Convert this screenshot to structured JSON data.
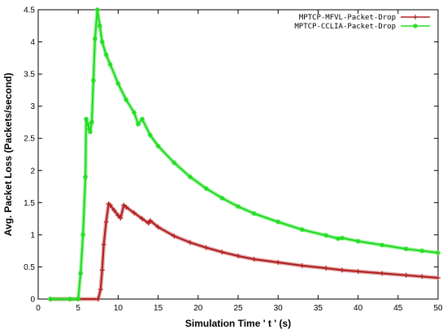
{
  "chart_data": {
    "type": "line",
    "xlabel": "Simulation Time ' t ' (s)",
    "ylabel": "Avg. Packet Loss (Packets/second)",
    "xlim": [
      0,
      50
    ],
    "ylim": [
      0,
      4.5
    ],
    "x_ticks": [
      "0",
      "5",
      "10",
      "15",
      "20",
      "25",
      "30",
      "35",
      "40",
      "45",
      "50"
    ],
    "y_ticks": [
      "0",
      "0.5",
      "1",
      "1.5",
      "2",
      "2.5",
      "3",
      "3.5",
      "4",
      "4.5"
    ],
    "legend_position": "top-right",
    "series": [
      {
        "name": "MPTCP-MFVL-Packet-Drop",
        "color": "#b22222",
        "marker": "plus",
        "x": [
          1.5,
          4,
          7.5,
          7.8,
          8,
          8.2,
          8.5,
          8.8,
          9,
          9.5,
          10,
          10.3,
          10.7,
          11,
          12,
          13,
          13.8,
          14,
          15,
          17,
          19,
          21,
          23,
          25,
          27,
          30,
          33,
          36,
          38,
          40,
          43,
          46,
          48,
          50
        ],
        "y": [
          0,
          0,
          0,
          0.15,
          0.45,
          0.85,
          1.2,
          1.48,
          1.46,
          1.38,
          1.3,
          1.26,
          1.46,
          1.43,
          1.34,
          1.25,
          1.18,
          1.22,
          1.12,
          0.98,
          0.88,
          0.8,
          0.73,
          0.67,
          0.62,
          0.57,
          0.52,
          0.48,
          0.45,
          0.43,
          0.4,
          0.37,
          0.35,
          0.33
        ]
      },
      {
        "name": "MPTCP-CCLIA-Packet-Drop",
        "color": "#22dd22",
        "marker": "asterisk",
        "x": [
          1.5,
          4,
          5,
          5.3,
          5.6,
          5.9,
          6,
          6.2,
          6.4,
          6.5,
          6.7,
          6.9,
          7.1,
          7.4,
          7.7,
          8,
          8.5,
          9,
          10,
          11,
          12,
          12.5,
          13,
          14,
          15,
          17,
          19,
          21,
          23,
          25,
          27,
          30,
          33,
          36,
          37.5,
          38,
          40,
          43,
          46,
          48,
          50
        ],
        "y": [
          0,
          0,
          0,
          0.4,
          1.0,
          1.9,
          2.8,
          2.72,
          2.65,
          2.6,
          2.75,
          3.4,
          4.05,
          4.5,
          4.25,
          4.0,
          3.8,
          3.65,
          3.35,
          3.1,
          2.9,
          2.72,
          2.8,
          2.55,
          2.38,
          2.12,
          1.9,
          1.72,
          1.57,
          1.44,
          1.33,
          1.2,
          1.08,
          0.99,
          0.94,
          0.95,
          0.9,
          0.84,
          0.78,
          0.75,
          0.72
        ]
      }
    ]
  }
}
